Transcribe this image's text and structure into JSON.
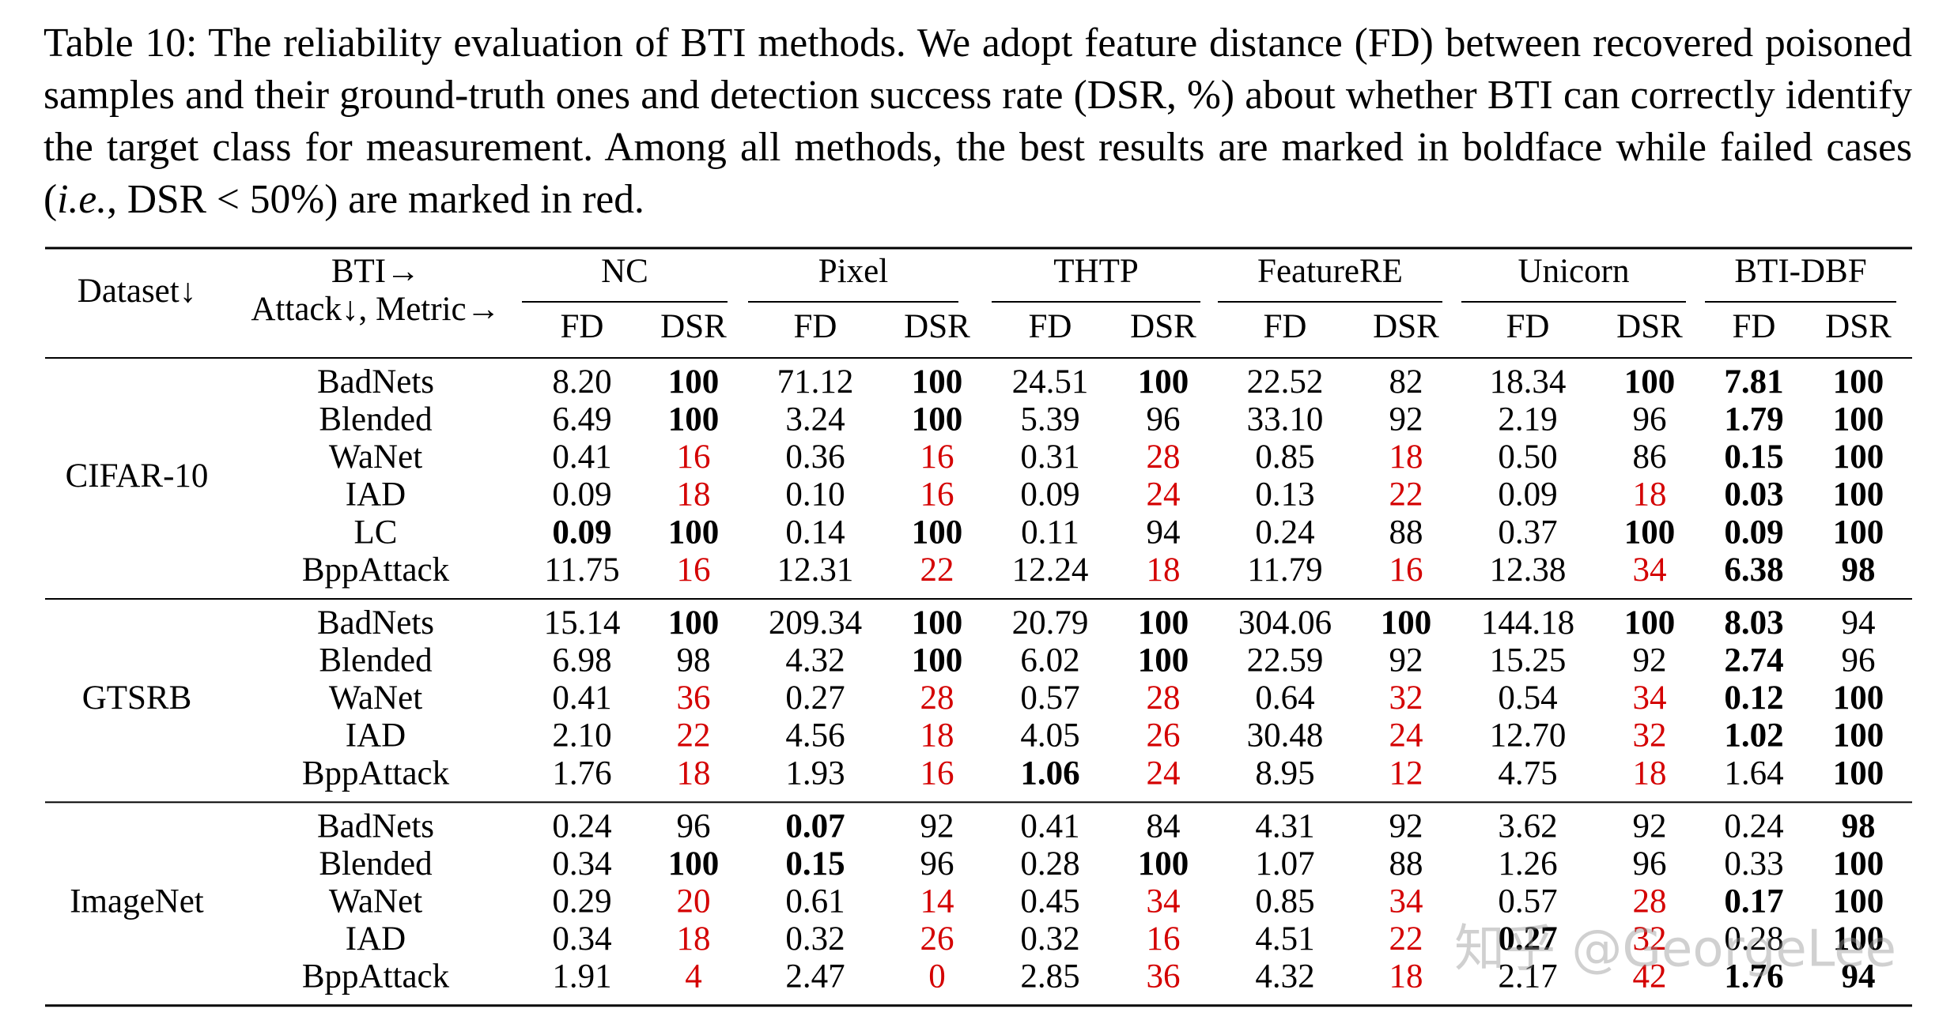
{
  "caption": {
    "parts": [
      "Table 10: The reliability evaluation of BTI methods. We adopt feature distance (FD) between recovered poisoned samples and their ground-truth ones and detection success rate (DSR, %) about whether BTI can correctly identify the target class for measurement. Among all methods, the best results are marked in boldface while failed cases (",
      "i.e.",
      ", DSR < 50%) are marked in red."
    ]
  },
  "table": {
    "header": {
      "dataset": "Dataset↓",
      "bti": "BTI→",
      "attack_metric": "Attack↓, Metric→",
      "methods": [
        "NC",
        "Pixel",
        "THTP",
        "FeatureRE",
        "Unicorn",
        "BTI-DBF"
      ],
      "metrics": [
        "FD",
        "DSR"
      ]
    },
    "highlight_color": "#d40000",
    "groups": [
      {
        "dataset": "CIFAR-10",
        "rows": [
          {
            "attack": "BadNets",
            "cells": [
              {
                "text": "8.20"
              },
              {
                "text": "100",
                "bold": true
              },
              {
                "text": "71.12"
              },
              {
                "text": "100",
                "bold": true
              },
              {
                "text": "24.51"
              },
              {
                "text": "100",
                "bold": true
              },
              {
                "text": "22.52"
              },
              {
                "text": "82"
              },
              {
                "text": "18.34"
              },
              {
                "text": "100",
                "bold": true
              },
              {
                "text": "7.81",
                "bold": true
              },
              {
                "text": "100",
                "bold": true
              }
            ]
          },
          {
            "attack": "Blended",
            "cells": [
              {
                "text": "6.49"
              },
              {
                "text": "100",
                "bold": true
              },
              {
                "text": "3.24"
              },
              {
                "text": "100",
                "bold": true
              },
              {
                "text": "5.39"
              },
              {
                "text": "96"
              },
              {
                "text": "33.10"
              },
              {
                "text": "92"
              },
              {
                "text": "2.19"
              },
              {
                "text": "96"
              },
              {
                "text": "1.79",
                "bold": true
              },
              {
                "text": "100",
                "bold": true
              }
            ]
          },
          {
            "attack": "WaNet",
            "cells": [
              {
                "text": "0.41"
              },
              {
                "text": "16",
                "red": true
              },
              {
                "text": "0.36"
              },
              {
                "text": "16",
                "red": true
              },
              {
                "text": "0.31"
              },
              {
                "text": "28",
                "red": true
              },
              {
                "text": "0.85"
              },
              {
                "text": "18",
                "red": true
              },
              {
                "text": "0.50"
              },
              {
                "text": "86"
              },
              {
                "text": "0.15",
                "bold": true
              },
              {
                "text": "100",
                "bold": true
              }
            ]
          },
          {
            "attack": "IAD",
            "cells": [
              {
                "text": "0.09"
              },
              {
                "text": "18",
                "red": true
              },
              {
                "text": "0.10"
              },
              {
                "text": "16",
                "red": true
              },
              {
                "text": "0.09"
              },
              {
                "text": "24",
                "red": true
              },
              {
                "text": "0.13"
              },
              {
                "text": "22",
                "red": true
              },
              {
                "text": "0.09"
              },
              {
                "text": "18",
                "red": true
              },
              {
                "text": "0.03",
                "bold": true
              },
              {
                "text": "100",
                "bold": true
              }
            ]
          },
          {
            "attack": "LC",
            "cells": [
              {
                "text": "0.09",
                "bold": true
              },
              {
                "text": "100",
                "bold": true
              },
              {
                "text": "0.14"
              },
              {
                "text": "100",
                "bold": true
              },
              {
                "text": "0.11"
              },
              {
                "text": "94"
              },
              {
                "text": "0.24"
              },
              {
                "text": "88"
              },
              {
                "text": "0.37"
              },
              {
                "text": "100",
                "bold": true
              },
              {
                "text": "0.09",
                "bold": true
              },
              {
                "text": "100",
                "bold": true
              }
            ]
          },
          {
            "attack": "BppAttack",
            "cells": [
              {
                "text": "11.75"
              },
              {
                "text": "16",
                "red": true
              },
              {
                "text": "12.31"
              },
              {
                "text": "22",
                "red": true
              },
              {
                "text": "12.24"
              },
              {
                "text": "18",
                "red": true
              },
              {
                "text": "11.79"
              },
              {
                "text": "16",
                "red": true
              },
              {
                "text": "12.38"
              },
              {
                "text": "34",
                "red": true
              },
              {
                "text": "6.38",
                "bold": true
              },
              {
                "text": "98",
                "bold": true
              }
            ]
          }
        ]
      },
      {
        "dataset": "GTSRB",
        "rows": [
          {
            "attack": "BadNets",
            "cells": [
              {
                "text": "15.14"
              },
              {
                "text": "100",
                "bold": true
              },
              {
                "text": "209.34"
              },
              {
                "text": "100",
                "bold": true
              },
              {
                "text": "20.79"
              },
              {
                "text": "100",
                "bold": true
              },
              {
                "text": "304.06"
              },
              {
                "text": "100",
                "bold": true
              },
              {
                "text": "144.18"
              },
              {
                "text": "100",
                "bold": true
              },
              {
                "text": "8.03",
                "bold": true
              },
              {
                "text": "94"
              }
            ]
          },
          {
            "attack": "Blended",
            "cells": [
              {
                "text": "6.98"
              },
              {
                "text": "98"
              },
              {
                "text": "4.32"
              },
              {
                "text": "100",
                "bold": true
              },
              {
                "text": "6.02"
              },
              {
                "text": "100",
                "bold": true
              },
              {
                "text": "22.59"
              },
              {
                "text": "92"
              },
              {
                "text": "15.25"
              },
              {
                "text": "92"
              },
              {
                "text": "2.74",
                "bold": true
              },
              {
                "text": "96"
              }
            ]
          },
          {
            "attack": "WaNet",
            "cells": [
              {
                "text": "0.41"
              },
              {
                "text": "36",
                "red": true
              },
              {
                "text": "0.27"
              },
              {
                "text": "28",
                "red": true
              },
              {
                "text": "0.57"
              },
              {
                "text": "28",
                "red": true
              },
              {
                "text": "0.64"
              },
              {
                "text": "32",
                "red": true
              },
              {
                "text": "0.54"
              },
              {
                "text": "34",
                "red": true
              },
              {
                "text": "0.12",
                "bold": true
              },
              {
                "text": "100",
                "bold": true
              }
            ]
          },
          {
            "attack": "IAD",
            "cells": [
              {
                "text": "2.10"
              },
              {
                "text": "22",
                "red": true
              },
              {
                "text": "4.56"
              },
              {
                "text": "18",
                "red": true
              },
              {
                "text": "4.05"
              },
              {
                "text": "26",
                "red": true
              },
              {
                "text": "30.48"
              },
              {
                "text": "24",
                "red": true
              },
              {
                "text": "12.70"
              },
              {
                "text": "32",
                "red": true
              },
              {
                "text": "1.02",
                "bold": true
              },
              {
                "text": "100",
                "bold": true
              }
            ]
          },
          {
            "attack": "BppAttack",
            "cells": [
              {
                "text": "1.76"
              },
              {
                "text": "18",
                "red": true
              },
              {
                "text": "1.93"
              },
              {
                "text": "16",
                "red": true
              },
              {
                "text": "1.06",
                "bold": true
              },
              {
                "text": "24",
                "red": true
              },
              {
                "text": "8.95"
              },
              {
                "text": "12",
                "red": true
              },
              {
                "text": "4.75"
              },
              {
                "text": "18",
                "red": true
              },
              {
                "text": "1.64"
              },
              {
                "text": "100",
                "bold": true
              }
            ]
          }
        ]
      },
      {
        "dataset": "ImageNet",
        "rows": [
          {
            "attack": "BadNets",
            "cells": [
              {
                "text": "0.24"
              },
              {
                "text": "96"
              },
              {
                "text": "0.07",
                "bold": true
              },
              {
                "text": "92"
              },
              {
                "text": "0.41"
              },
              {
                "text": "84"
              },
              {
                "text": "4.31"
              },
              {
                "text": "92"
              },
              {
                "text": "3.62"
              },
              {
                "text": "92"
              },
              {
                "text": "0.24"
              },
              {
                "text": "98",
                "bold": true
              }
            ]
          },
          {
            "attack": "Blended",
            "cells": [
              {
                "text": "0.34"
              },
              {
                "text": "100",
                "bold": true
              },
              {
                "text": "0.15",
                "bold": true
              },
              {
                "text": "96"
              },
              {
                "text": "0.28"
              },
              {
                "text": "100",
                "bold": true
              },
              {
                "text": "1.07"
              },
              {
                "text": "88"
              },
              {
                "text": "1.26"
              },
              {
                "text": "96"
              },
              {
                "text": "0.33"
              },
              {
                "text": "100",
                "bold": true
              }
            ]
          },
          {
            "attack": "WaNet",
            "cells": [
              {
                "text": "0.29"
              },
              {
                "text": "20",
                "red": true
              },
              {
                "text": "0.61"
              },
              {
                "text": "14",
                "red": true
              },
              {
                "text": "0.45"
              },
              {
                "text": "34",
                "red": true
              },
              {
                "text": "0.85"
              },
              {
                "text": "34",
                "red": true
              },
              {
                "text": "0.57"
              },
              {
                "text": "28",
                "red": true
              },
              {
                "text": "0.17",
                "bold": true
              },
              {
                "text": "100",
                "bold": true
              }
            ]
          },
          {
            "attack": "IAD",
            "cells": [
              {
                "text": "0.34"
              },
              {
                "text": "18",
                "red": true
              },
              {
                "text": "0.32"
              },
              {
                "text": "26",
                "red": true
              },
              {
                "text": "0.32"
              },
              {
                "text": "16",
                "red": true
              },
              {
                "text": "4.51"
              },
              {
                "text": "22",
                "red": true
              },
              {
                "text": "0.27",
                "bold": true
              },
              {
                "text": "32",
                "red": true
              },
              {
                "text": "0.28"
              },
              {
                "text": "100",
                "bold": true
              }
            ]
          },
          {
            "attack": "BppAttack",
            "cells": [
              {
                "text": "1.91"
              },
              {
                "text": "4",
                "red": true
              },
              {
                "text": "2.47"
              },
              {
                "text": "0",
                "red": true
              },
              {
                "text": "2.85"
              },
              {
                "text": "36",
                "red": true
              },
              {
                "text": "4.32"
              },
              {
                "text": "18",
                "red": true
              },
              {
                "text": "2.17"
              },
              {
                "text": "42",
                "red": true
              },
              {
                "text": "1.76",
                "bold": true
              },
              {
                "text": "94",
                "bold": true
              }
            ]
          }
        ]
      }
    ]
  },
  "watermark": "知乎 @GeorgeLee"
}
